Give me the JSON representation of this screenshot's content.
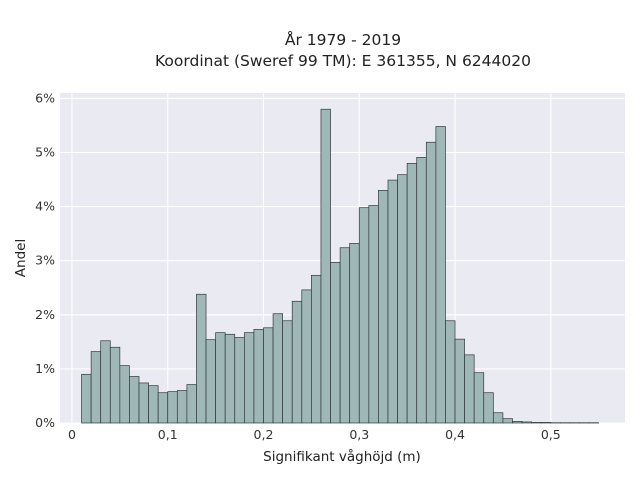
{
  "chart_data": {
    "type": "bar",
    "title_lines": [
      "År 1979 - 2019",
      "Koordinat (Sweref 99 TM): E 361355, N 6244020"
    ],
    "xlabel": "Signifikant våghöjd (m)",
    "ylabel": "Andel",
    "xlim": [
      -0.0125,
      0.5775
    ],
    "ylim": [
      0,
      6.1
    ],
    "x_ticks": [
      0,
      0.1,
      0.2,
      0.3,
      0.4,
      0.5
    ],
    "x_tick_labels": [
      "0",
      "0,1",
      "0,2",
      "0,3",
      "0,4",
      "0,5"
    ],
    "y_ticks": [
      0,
      1,
      2,
      3,
      4,
      5,
      6
    ],
    "y_tick_labels": [
      "0%",
      "1%",
      "2%",
      "3%",
      "4%",
      "5%",
      "6%"
    ],
    "bin_width": 0.01,
    "bin_start": 0.01,
    "values": [
      0.9,
      1.32,
      1.52,
      1.4,
      1.06,
      0.86,
      0.74,
      0.69,
      0.56,
      0.58,
      0.6,
      0.71,
      2.38,
      1.54,
      1.67,
      1.64,
      1.58,
      1.67,
      1.73,
      1.76,
      2.02,
      1.89,
      2.25,
      2.46,
      2.73,
      5.8,
      2.97,
      3.24,
      3.32,
      3.98,
      4.02,
      4.3,
      4.49,
      4.59,
      4.8,
      4.91,
      5.19,
      5.48,
      1.89,
      1.55,
      1.26,
      0.93,
      0.56,
      0.19,
      0.08,
      0.03,
      0.02,
      0.01,
      0.01,
      0.005,
      0.005,
      0.005,
      0.005,
      0.005
    ],
    "grid": true,
    "colors": {
      "background": "#eaeaf2",
      "bar_fill": "#9fb7b7",
      "bar_edge": "#2f3a3a",
      "grid": "#ffffff"
    }
  }
}
